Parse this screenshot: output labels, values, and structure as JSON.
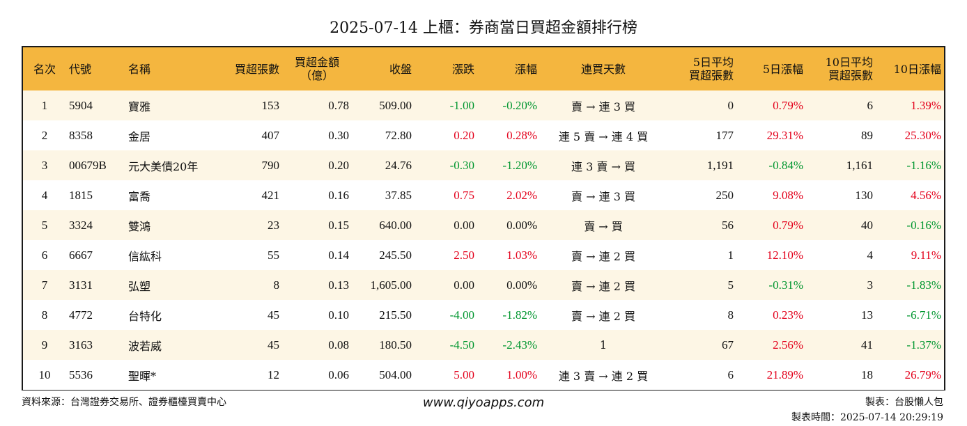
{
  "title": "2025-07-14 上櫃：券商當日買超金額排行榜",
  "columns": [
    "名次",
    "代號",
    "名稱",
    "買超張數",
    "買超金額\n（億）",
    "收盤",
    "漲跌",
    "漲幅",
    "連買天數",
    "5日平均\n買超張數",
    "5日漲幅",
    "10日平均\n買超張數",
    "10日漲幅"
  ],
  "rows": [
    [
      "1",
      "5904",
      "寶雅",
      "153",
      "0.78",
      "509.00",
      "-1.00",
      "-0.20%",
      "賣 → 連 3 買",
      "0",
      "0.79%",
      "6",
      "1.39%"
    ],
    [
      "2",
      "8358",
      "金居",
      "407",
      "0.30",
      "72.80",
      "0.20",
      "0.28%",
      "連 5 賣 → 連 4 買",
      "177",
      "29.31%",
      "89",
      "25.30%"
    ],
    [
      "3",
      "00679B",
      "元大美債20年",
      "790",
      "0.20",
      "24.76",
      "-0.30",
      "-1.20%",
      "連 3 賣 → 買",
      "1,191",
      "-0.84%",
      "1,161",
      "-1.16%"
    ],
    [
      "4",
      "1815",
      "富喬",
      "421",
      "0.16",
      "37.85",
      "0.75",
      "2.02%",
      "賣 → 連 3 買",
      "250",
      "9.08%",
      "130",
      "4.56%"
    ],
    [
      "5",
      "3324",
      "雙鴻",
      "23",
      "0.15",
      "640.00",
      "0.00",
      "0.00%",
      "賣 → 買",
      "56",
      "0.79%",
      "40",
      "-0.16%"
    ],
    [
      "6",
      "6667",
      "信紘科",
      "55",
      "0.14",
      "245.50",
      "2.50",
      "1.03%",
      "賣 → 連 2 買",
      "1",
      "12.10%",
      "4",
      "9.11%"
    ],
    [
      "7",
      "3131",
      "弘塑",
      "8",
      "0.13",
      "1,605.00",
      "0.00",
      "0.00%",
      "賣 → 連 2 買",
      "5",
      "-0.31%",
      "3",
      "-1.83%"
    ],
    [
      "8",
      "4772",
      "台特化",
      "45",
      "0.10",
      "215.50",
      "-4.00",
      "-1.82%",
      "賣 → 連 2 買",
      "8",
      "0.23%",
      "13",
      "-6.71%"
    ],
    [
      "9",
      "3163",
      "波若威",
      "45",
      "0.08",
      "180.50",
      "-4.50",
      "-2.43%",
      "1",
      "67",
      "2.56%",
      "41",
      "-1.37%"
    ],
    [
      "10",
      "5536",
      "聖暉*",
      "12",
      "0.06",
      "504.00",
      "5.00",
      "1.00%",
      "連 3 賣 → 連 2 買",
      "6",
      "21.89%",
      "18",
      "26.79%"
    ]
  ],
  "footer": {
    "source": "資料來源：台灣證券交易所、證券櫃檯買賣中心",
    "website": "www.qiyoapps.com",
    "maker": "製表：台股懶人包",
    "made_time": "製表時間：2025-07-14 20:29:19"
  },
  "colors": {
    "header_bg": "#f4b63f",
    "stripe_bg": "#fdf6e5",
    "positive": "#e3001b",
    "negative": "#00962f"
  }
}
